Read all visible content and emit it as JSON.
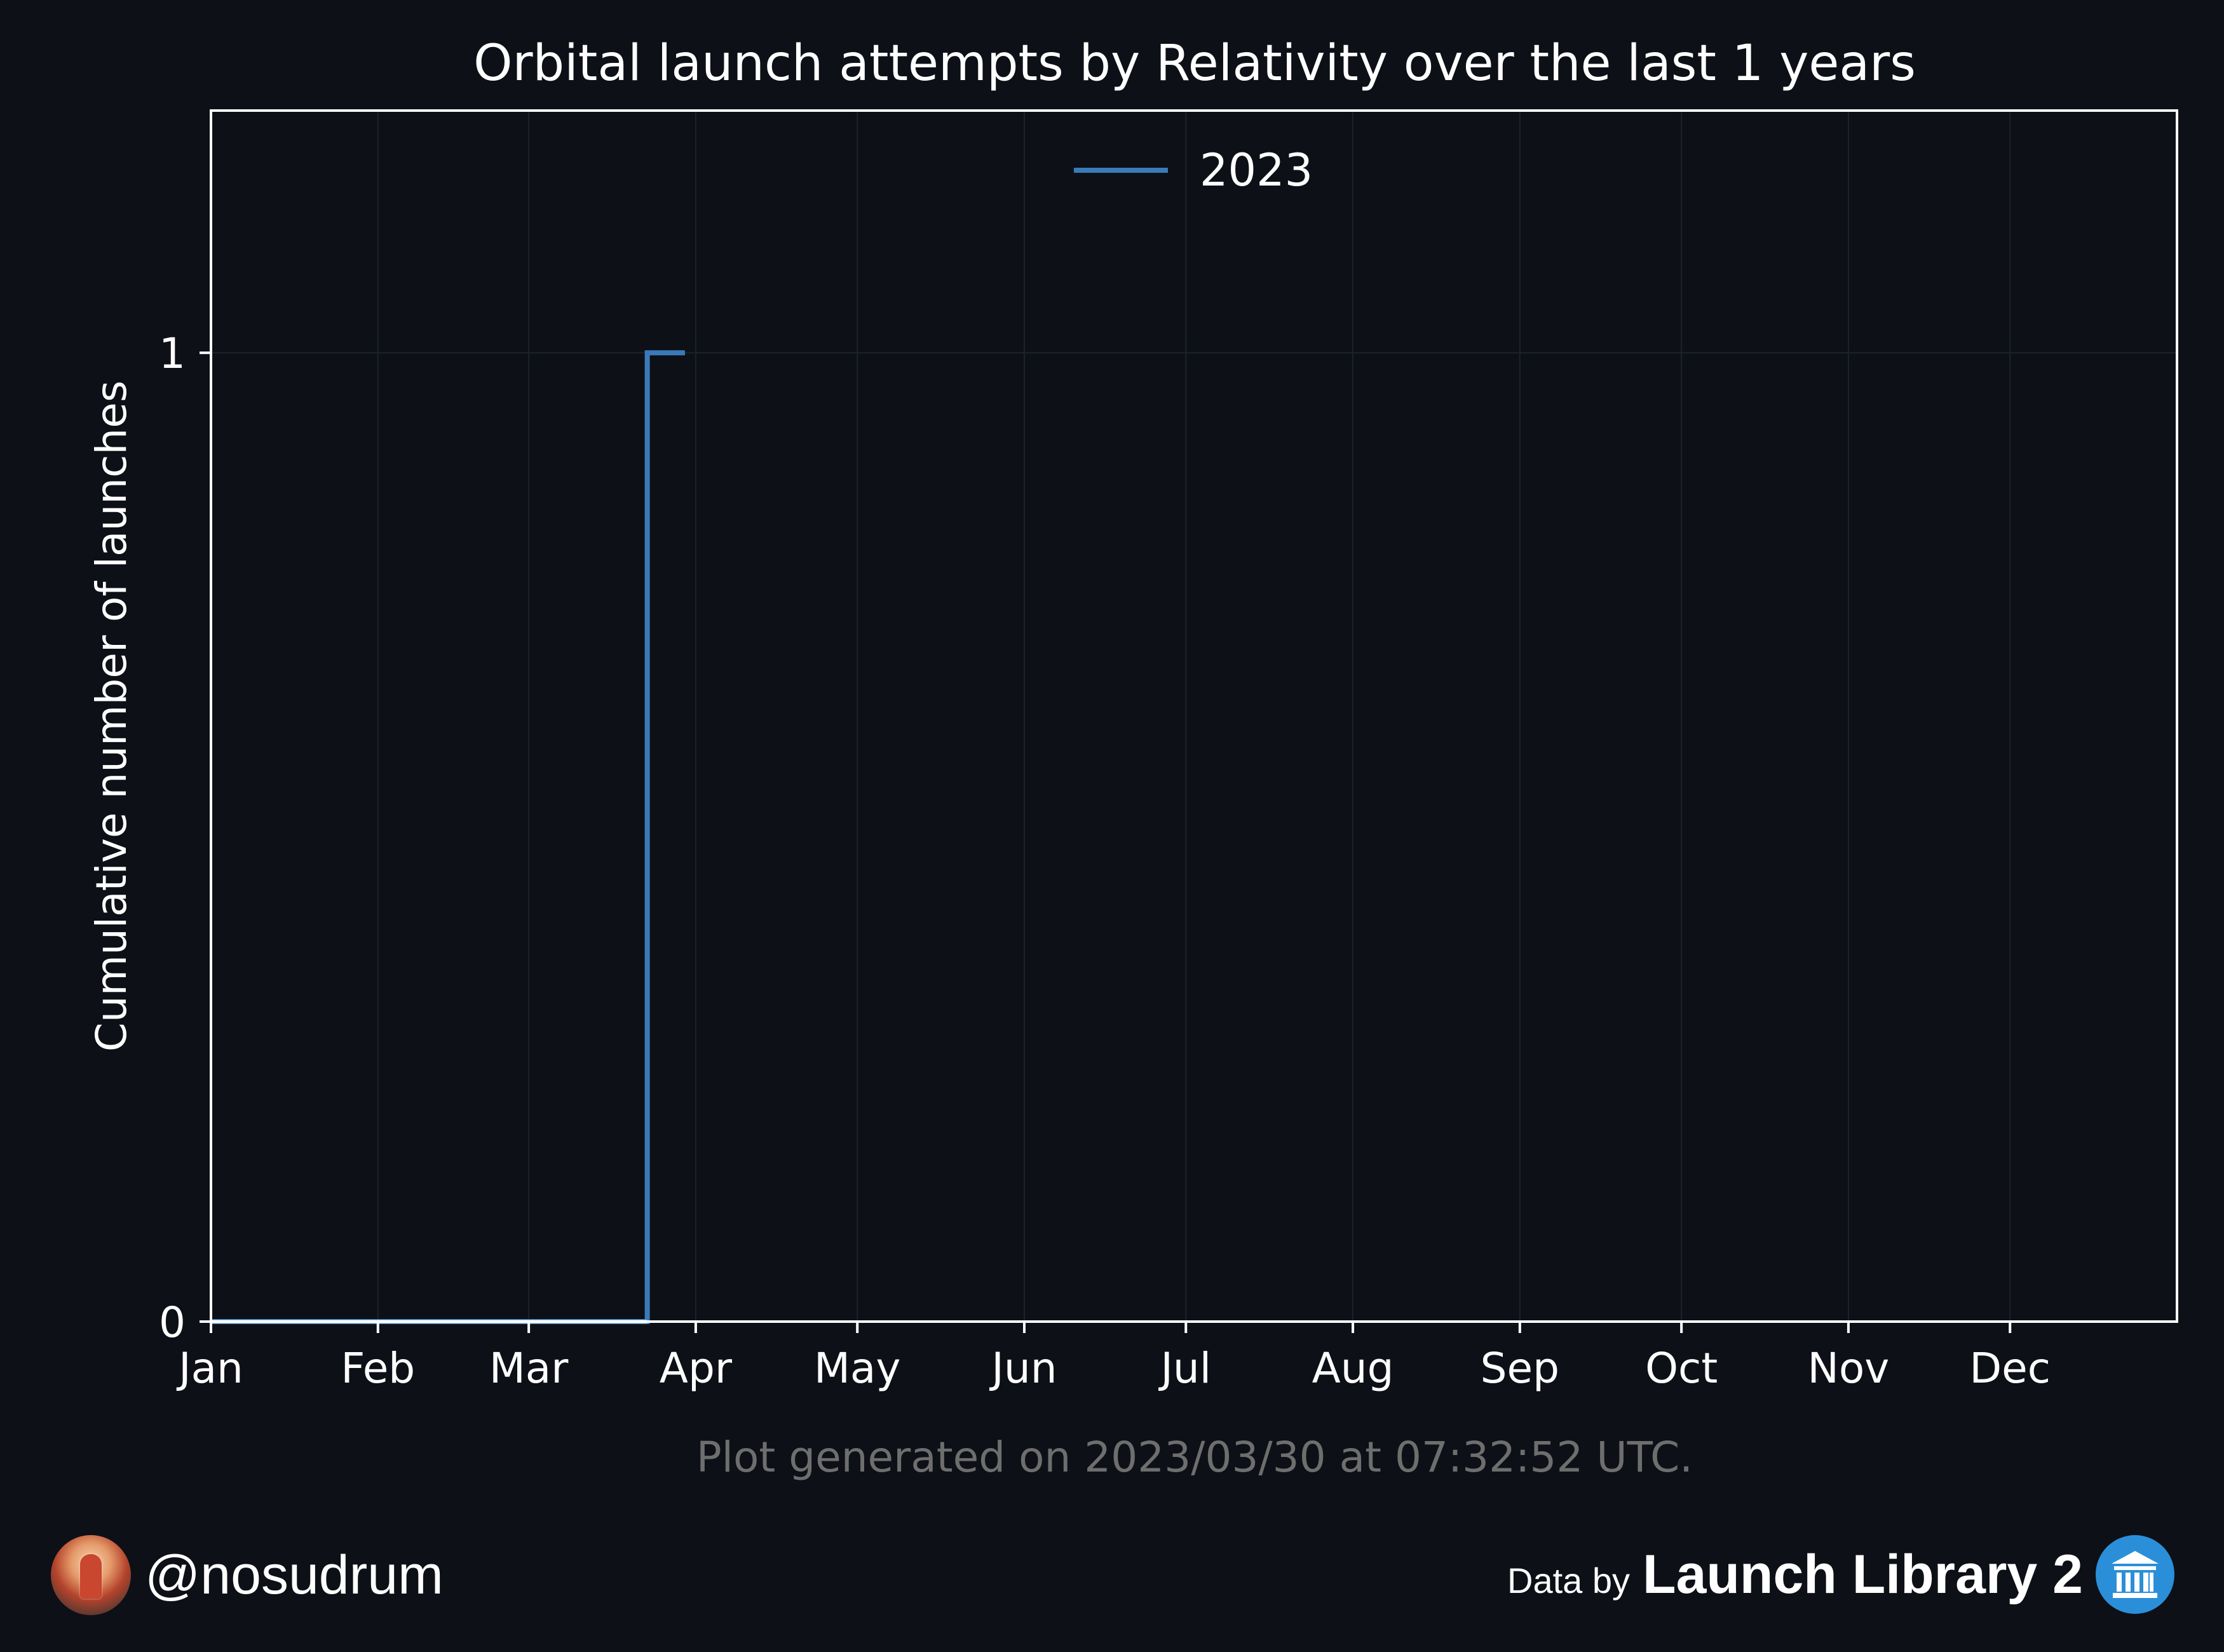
{
  "chart_data": {
    "type": "line",
    "title": "Orbital launch attempts by Relativity over the last 1 years",
    "xlabel": "",
    "ylabel": "Cumulative number of launches",
    "x_ticks": [
      "Jan",
      "Feb",
      "Mar",
      "Apr",
      "May",
      "Jun",
      "Jul",
      "Aug",
      "Sep",
      "Oct",
      "Nov",
      "Dec"
    ],
    "y_ticks": [
      "0",
      "1"
    ],
    "ylim": [
      0,
      1.25
    ],
    "xlim": [
      "2023-01-01",
      "2023-12-31"
    ],
    "grid": true,
    "legend_position": "top-center",
    "series": [
      {
        "name": "2023",
        "color": "#3a7ab8",
        "step": true,
        "points": [
          {
            "x": "2023-01-01",
            "y": 0
          },
          {
            "x": "2023-03-23",
            "y": 1
          },
          {
            "x": "2023-03-30",
            "y": 1
          }
        ]
      }
    ]
  },
  "footnote": "Plot generated on 2023/03/30 at 07:32:52 UTC.",
  "footer": {
    "handle": "@nosudrum",
    "credit_prefix": "Data by",
    "credit_name": "Launch Library 2",
    "credit_icon": "museum-icon"
  },
  "colors": {
    "background": "#0d1017",
    "text": "#ffffff",
    "footnote": "#6e6e6e",
    "grid": "#1d222b",
    "baseline_segment": "#a9c6e5"
  }
}
